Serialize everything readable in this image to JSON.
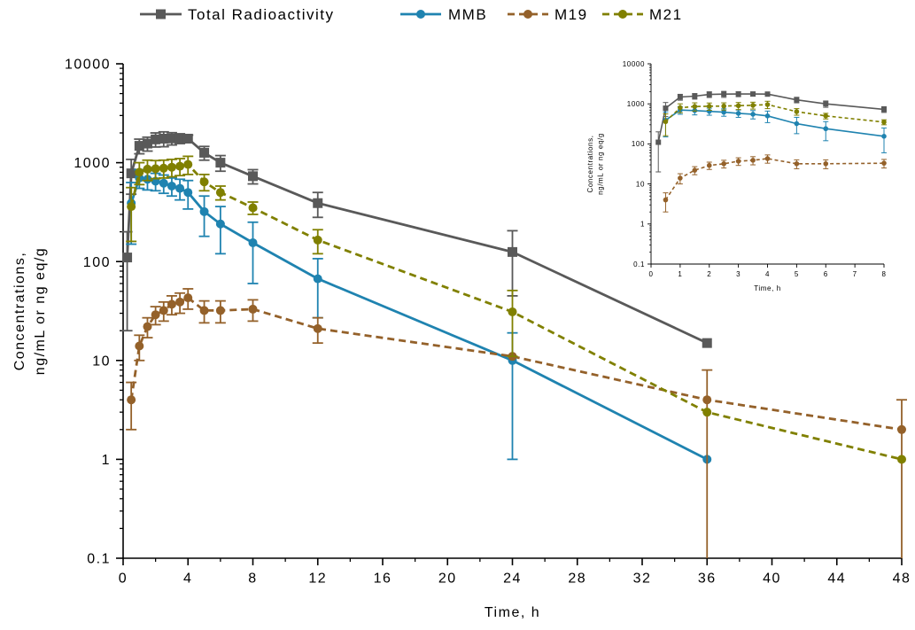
{
  "legend": {
    "items": [
      {
        "label": "Total Radioactivity",
        "series": "total"
      },
      {
        "label": "MMB",
        "series": "mmb"
      },
      {
        "label": "M19",
        "series": "m19"
      },
      {
        "label": "M21",
        "series": "m21"
      }
    ]
  },
  "colors": {
    "total": "#595959",
    "mmb": "#1f83b0",
    "m19": "#94612a",
    "m21": "#808000"
  },
  "chart_data": [
    {
      "type": "line",
      "role": "main",
      "yscale": "log",
      "xlabel": "Time, h",
      "ylabel": [
        "Concentrations,",
        "ng/mL or ng eq/g"
      ],
      "xlim": [
        0,
        48
      ],
      "ylim": [
        0.1,
        10000
      ],
      "xticks": [
        "0",
        "4",
        "8",
        "12",
        "16",
        "20",
        "24",
        "28",
        "32",
        "36",
        "40",
        "44",
        "48"
      ],
      "yticks": [
        "0.1",
        "1",
        "10",
        "100",
        "1000",
        "10000"
      ],
      "series": [
        {
          "name": "Total Radioactivity",
          "key": "total",
          "marker": "square",
          "dash": false,
          "x": [
            0.25,
            0.5,
            1,
            1.5,
            2,
            2.5,
            3,
            3.5,
            4,
            5,
            6,
            8,
            12,
            24,
            36
          ],
          "y": [
            110,
            780,
            1480,
            1560,
            1720,
            1750,
            1760,
            1760,
            1750,
            1260,
            1000,
            730,
            390,
            125,
            15
          ],
          "err": [
            90,
            300,
            250,
            250,
            280,
            300,
            250,
            200,
            150,
            200,
            180,
            120,
            110,
            80,
            0
          ]
        },
        {
          "name": "MMB",
          "key": "mmb",
          "marker": "circle",
          "dash": false,
          "x": [
            0.5,
            1,
            1.5,
            2,
            2.5,
            3,
            3.5,
            4,
            5,
            6,
            8,
            12,
            24,
            36
          ],
          "y": [
            390,
            700,
            680,
            650,
            620,
            580,
            550,
            500,
            320,
            240,
            155,
            67,
            10,
            1
          ],
          "err": [
            240,
            150,
            150,
            130,
            130,
            120,
            130,
            160,
            140,
            120,
            95,
            40,
            9,
            0
          ]
        },
        {
          "name": "M19",
          "key": "m19",
          "marker": "circle",
          "dash": true,
          "x": [
            0.5,
            1,
            1.5,
            2,
            2.5,
            3,
            3.5,
            4,
            5,
            6,
            8,
            12,
            24,
            36,
            48
          ],
          "y": [
            4,
            14,
            22,
            29,
            32,
            37,
            39,
            43,
            32,
            32,
            33,
            21,
            11,
            4,
            2
          ],
          "err": [
            2,
            4,
            5,
            6,
            7,
            8,
            9,
            10,
            8,
            8,
            8,
            6,
            0,
            4,
            2
          ]
        },
        {
          "name": "M21",
          "key": "m21",
          "marker": "circle",
          "dash": true,
          "x": [
            0.5,
            1,
            1.5,
            2,
            2.5,
            3,
            3.5,
            4,
            5,
            6,
            8,
            12,
            24,
            36,
            48
          ],
          "y": [
            360,
            800,
            860,
            870,
            880,
            900,
            920,
            960,
            640,
            500,
            350,
            165,
            31,
            3,
            1
          ],
          "err": [
            200,
            200,
            200,
            180,
            180,
            180,
            180,
            200,
            120,
            80,
            50,
            45,
            20,
            0,
            0
          ]
        }
      ]
    },
    {
      "type": "line",
      "role": "inset",
      "yscale": "log",
      "xlabel": "Time, h",
      "ylabel": [
        "Concentrations,",
        "ng/mL or ng eq/g"
      ],
      "xlim": [
        0,
        8
      ],
      "ylim": [
        0.1,
        10000
      ],
      "xticks": [
        "0",
        "1",
        "2",
        "3",
        "4",
        "5",
        "6",
        "7",
        "8"
      ],
      "yticks": [
        "0.1",
        "1",
        "10",
        "100",
        "1000",
        "10000"
      ],
      "series": [
        {
          "name": "Total Radioactivity",
          "key": "total",
          "marker": "square",
          "dash": false,
          "x": [
            0.25,
            0.5,
            1,
            1.5,
            2,
            2.5,
            3,
            3.5,
            4,
            5,
            6,
            8
          ],
          "y": [
            110,
            780,
            1480,
            1560,
            1720,
            1750,
            1760,
            1760,
            1750,
            1260,
            1000,
            730
          ],
          "err": [
            90,
            300,
            250,
            250,
            280,
            300,
            250,
            200,
            150,
            200,
            180,
            120
          ]
        },
        {
          "name": "MMB",
          "key": "mmb",
          "marker": "circle",
          "dash": false,
          "x": [
            0.5,
            1,
            1.5,
            2,
            2.5,
            3,
            3.5,
            4,
            5,
            6,
            8
          ],
          "y": [
            390,
            700,
            680,
            650,
            620,
            580,
            550,
            500,
            320,
            240,
            155
          ],
          "err": [
            240,
            150,
            150,
            130,
            130,
            120,
            130,
            160,
            140,
            120,
            95
          ]
        },
        {
          "name": "M19",
          "key": "m19",
          "marker": "circle",
          "dash": true,
          "x": [
            0.5,
            1,
            1.5,
            2,
            2.5,
            3,
            3.5,
            4,
            5,
            6,
            8
          ],
          "y": [
            4,
            14,
            22,
            29,
            32,
            37,
            39,
            43,
            32,
            32,
            33
          ],
          "err": [
            2,
            4,
            5,
            6,
            7,
            8,
            9,
            10,
            8,
            8,
            8
          ]
        },
        {
          "name": "M21",
          "key": "m21",
          "marker": "circle",
          "dash": true,
          "x": [
            0.5,
            1,
            1.5,
            2,
            2.5,
            3,
            3.5,
            4,
            5,
            6,
            8
          ],
          "y": [
            360,
            800,
            860,
            870,
            880,
            900,
            920,
            960,
            640,
            500,
            350
          ],
          "err": [
            200,
            200,
            200,
            180,
            180,
            180,
            180,
            200,
            120,
            80,
            50
          ]
        }
      ]
    }
  ]
}
